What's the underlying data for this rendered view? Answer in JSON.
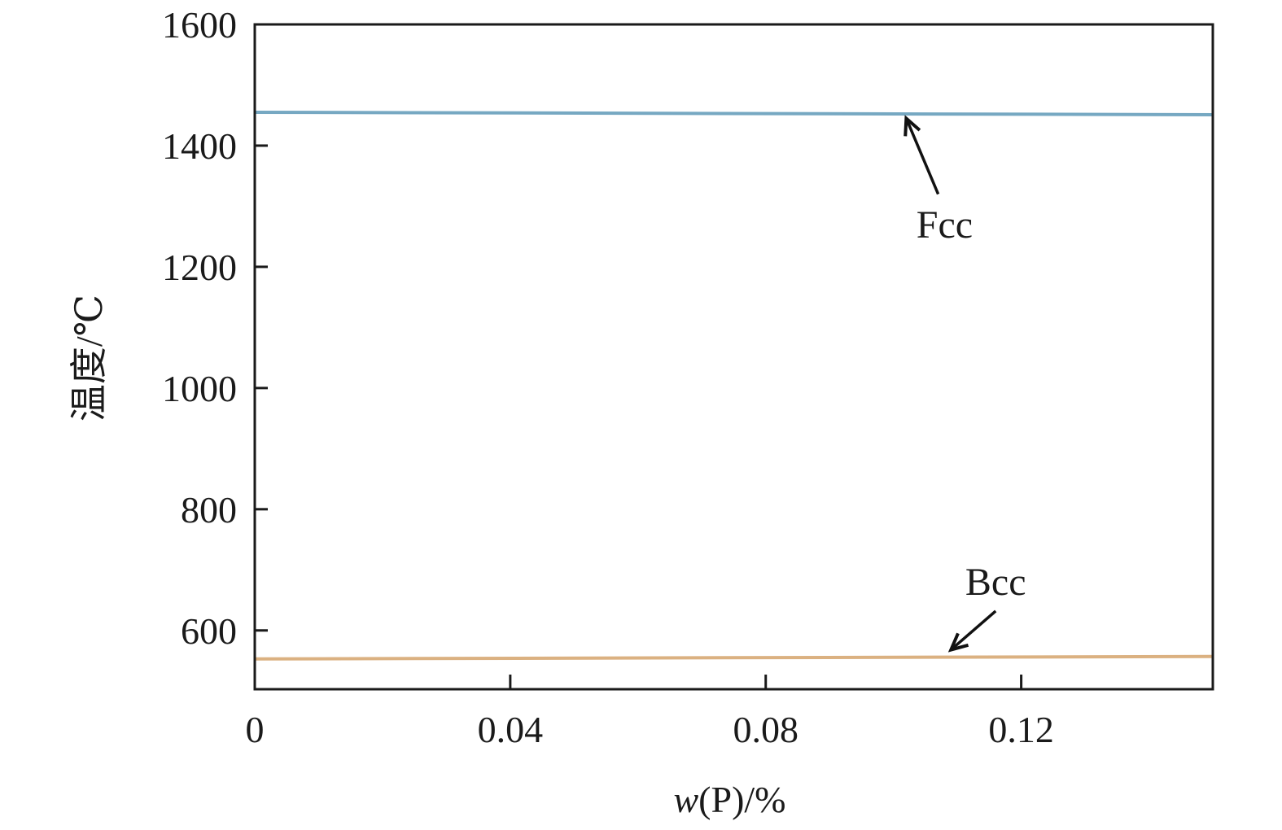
{
  "chart_data": {
    "type": "line",
    "title": "",
    "xlabel": "w(P)/%",
    "xlabel_italic_part": "w",
    "xlabel_rest": "(P)/%",
    "ylabel": "温度/℃",
    "xlim": [
      0,
      0.15
    ],
    "ylim": [
      503,
      1600
    ],
    "xticks": [
      0,
      0.04,
      0.08,
      0.12
    ],
    "xtick_labels": [
      "0",
      "0.04",
      "0.08",
      "0.12"
    ],
    "yticks": [
      600,
      800,
      1000,
      1200,
      1400,
      1600
    ],
    "ytick_labels": [
      "600",
      "800",
      "1000",
      "1200",
      "1400",
      "1600"
    ],
    "grid": false,
    "series": [
      {
        "name": "Fcc",
        "color": "#6fa3bf",
        "x": [
          0,
          0.15
        ],
        "y": [
          1455,
          1451
        ]
      },
      {
        "name": "Bcc",
        "color": "#d9ad7a",
        "x": [
          0,
          0.15
        ],
        "y": [
          553,
          557
        ]
      }
    ],
    "annotations": [
      {
        "text": "Fcc",
        "arrow_from": [
          0.107,
          1320
        ],
        "arrow_to": [
          0.102,
          1445
        ],
        "label_at": [
          0.108,
          1270
        ]
      },
      {
        "text": "Bcc",
        "arrow_from": [
          0.116,
          632
        ],
        "arrow_to": [
          0.109,
          568
        ],
        "label_at": [
          0.116,
          680
        ]
      }
    ]
  }
}
